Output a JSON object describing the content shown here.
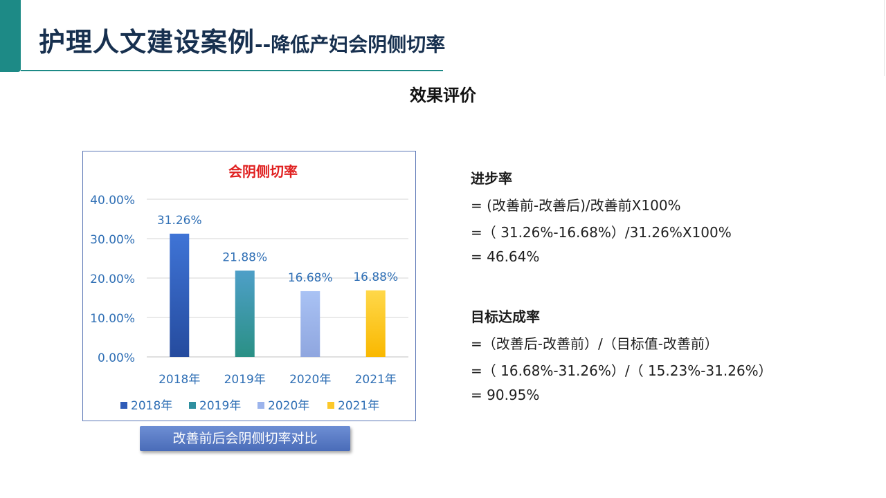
{
  "header": {
    "title_main": "护理人文建设案例",
    "title_sub": "--降低产妇会阴侧切率"
  },
  "section_heading": "效果评价",
  "chart_data": {
    "type": "bar",
    "title": "会阴侧切率",
    "categories": [
      "2018年",
      "2019年",
      "2020年",
      "2021年"
    ],
    "values": [
      31.26,
      21.88,
      16.68,
      16.88
    ],
    "data_labels": [
      "31.26%",
      "21.88%",
      "16.68%",
      "16.88%"
    ],
    "yticks": [
      "0.00%",
      "10.00%",
      "20.00%",
      "30.00%",
      "40.00%"
    ],
    "ylim": [
      0,
      40
    ],
    "grid": true,
    "legend_position": "bottom",
    "legend": [
      "2018年",
      "2019年",
      "2020年",
      "2021年"
    ],
    "colors": {
      "bars": [
        [
          "#3f74d6",
          "#254b9e"
        ],
        [
          "#4e9fc8",
          "#2a9085"
        ],
        [
          "#a9c2f4",
          "#8fa6df"
        ],
        [
          "#ffd84a",
          "#f9b800"
        ]
      ],
      "legend": [
        "#2f5cb8",
        "#2f8f9f",
        "#9cb4ec",
        "#fcc82a"
      ],
      "text": "#2f6fb5",
      "title": "#e02020",
      "grid": "#d4d4d4"
    }
  },
  "chart_caption": "改善前后会阴侧切率对比",
  "progress": {
    "title": "进步率",
    "lines": [
      "=  (改善前-改善后)/改善前X100%",
      "=（ 31.26%-16.68%）/31.26%X100%",
      "=  46.64%"
    ]
  },
  "target": {
    "title": "目标达成率",
    "lines": [
      "=（改善后-改善前）/（目标值-改善前）",
      "=（ 16.68%-31.26%）/（ 15.23%-31.26%）",
      "=  90.95%"
    ]
  }
}
